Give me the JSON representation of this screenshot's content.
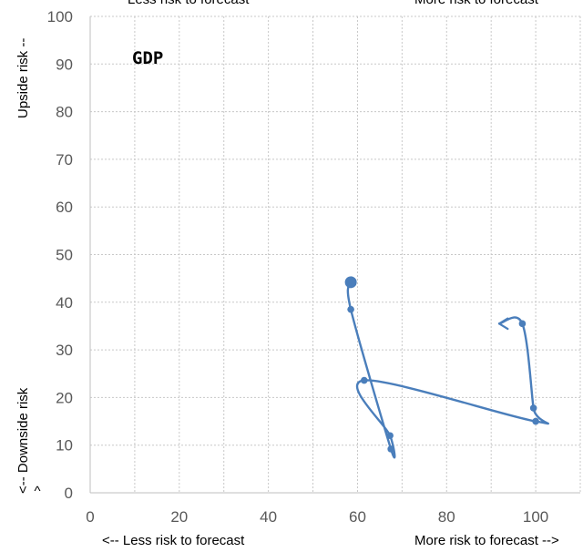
{
  "chart_data": {
    "type": "line",
    "title": "GDP",
    "xlabel_left": "<-- Less risk to forecast",
    "xlabel_right": "More risk to forecast -->",
    "top_label_left": "Less risk to forecast",
    "top_label_right": "More risk to forecast",
    "ylabel_top": "Upside risk --",
    "ylabel_bottom": "<-- Downside risk",
    "ylabel_bottom_caret": "^",
    "xlim": [
      0,
      110
    ],
    "ylim": [
      0,
      100
    ],
    "xticks": [
      0,
      20,
      40,
      60,
      80,
      100
    ],
    "yticks": [
      0,
      10,
      20,
      30,
      40,
      50,
      60,
      70,
      80,
      90,
      100
    ],
    "grid": true,
    "series": [
      {
        "color": "#4a7ebb",
        "points": [
          {
            "x": 58.5,
            "y": 44.2
          },
          {
            "x": 58.5,
            "y": 38.5
          },
          {
            "x": 67.5,
            "y": 9.2
          },
          {
            "x": 67.3,
            "y": 12.0
          },
          {
            "x": 61.5,
            "y": 23.6
          },
          {
            "x": 100.0,
            "y": 15.0
          },
          {
            "x": 99.5,
            "y": 17.8
          },
          {
            "x": 97.0,
            "y": 35.5
          },
          {
            "x": 91.8,
            "y": 35.5
          }
        ]
      }
    ]
  }
}
